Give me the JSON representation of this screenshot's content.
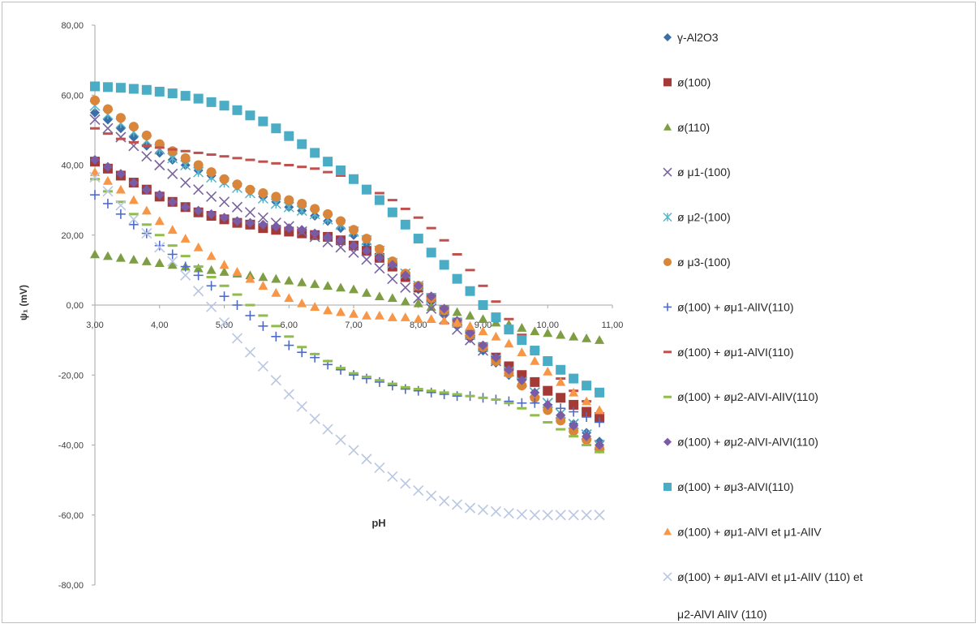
{
  "chart_data": {
    "type": "scatter",
    "title": "",
    "xlabel": "pH",
    "ylabel": "ψ₁ (mV)",
    "xlim": [
      3.0,
      11.0
    ],
    "ylim": [
      -80.0,
      80.0
    ],
    "x_ticks": [
      "3,00",
      "4,00",
      "5,00",
      "6,00",
      "7,00",
      "8,00",
      "9,00",
      "10,00",
      "11,00"
    ],
    "y_ticks": [
      "80,00",
      "60,00",
      "40,00",
      "20,00",
      "0,00",
      "-20,00",
      "-40,00",
      "-60,00",
      "-80,00"
    ],
    "grid": false,
    "legend_position": "right",
    "series": [
      {
        "name": "γ-Al2O3",
        "marker": "diamond",
        "color": "#3c6ea8",
        "x": [
          3.0,
          3.2,
          3.4,
          3.6,
          3.8,
          4.0,
          4.2,
          4.4,
          4.6,
          4.8,
          5.0,
          5.2,
          5.4,
          5.6,
          5.8,
          6.0,
          6.2,
          6.4,
          6.6,
          6.8,
          7.0,
          7.2,
          7.4,
          7.6,
          7.8,
          8.0,
          8.2,
          8.4,
          8.6,
          8.8,
          9.0,
          9.2,
          9.4,
          9.6,
          9.8,
          10.0,
          10.2,
          10.4,
          10.6,
          10.8
        ],
        "y": [
          55.0,
          53.0,
          50.5,
          48.0,
          45.5,
          43.5,
          41.5,
          40.0,
          38.5,
          37.0,
          35.5,
          34.0,
          32.5,
          31.0,
          29.5,
          28.0,
          27.0,
          25.5,
          24.0,
          22.0,
          20.0,
          17.5,
          14.5,
          11.5,
          8.0,
          4.5,
          1.0,
          -2.5,
          -6.0,
          -9.5,
          -13.0,
          -16.5,
          -20.0,
          -23.0,
          -26.0,
          -29.0,
          -31.5,
          -34.0,
          -36.5,
          -39.0
        ]
      },
      {
        "name": "ø(100)",
        "marker": "square",
        "color": "#a33a36",
        "x": [
          3.0,
          3.2,
          3.4,
          3.6,
          3.8,
          4.0,
          4.2,
          4.4,
          4.6,
          4.8,
          5.0,
          5.2,
          5.4,
          5.6,
          5.8,
          6.0,
          6.2,
          6.4,
          6.6,
          6.8,
          7.0,
          7.2,
          7.4,
          7.6,
          7.8,
          8.0,
          8.2,
          8.4,
          8.6,
          8.8,
          9.0,
          9.2,
          9.4,
          9.6,
          9.8,
          10.0,
          10.2,
          10.4,
          10.6,
          10.8
        ],
        "y": [
          41.0,
          39.0,
          37.0,
          35.0,
          33.0,
          31.0,
          29.5,
          28.0,
          26.5,
          25.5,
          24.5,
          23.5,
          23.0,
          22.0,
          21.5,
          21.0,
          20.5,
          20.0,
          19.5,
          18.5,
          17.0,
          15.5,
          13.5,
          11.0,
          8.0,
          5.0,
          2.0,
          -1.5,
          -5.0,
          -8.5,
          -12.0,
          -15.0,
          -17.5,
          -20.0,
          -22.0,
          -24.5,
          -26.5,
          -28.5,
          -30.5,
          -32.0
        ]
      },
      {
        "name": "ø(110)",
        "marker": "triangle",
        "color": "#7e9e45",
        "x": [
          3.0,
          3.2,
          3.4,
          3.6,
          3.8,
          4.0,
          4.2,
          4.4,
          4.6,
          4.8,
          5.0,
          5.2,
          5.4,
          5.6,
          5.8,
          6.0,
          6.2,
          6.4,
          6.6,
          6.8,
          7.0,
          7.2,
          7.4,
          7.6,
          7.8,
          8.0,
          8.2,
          8.4,
          8.6,
          8.8,
          9.0,
          9.2,
          9.4,
          9.6,
          9.8,
          10.0,
          10.2,
          10.4,
          10.6,
          10.8
        ],
        "y": [
          14.5,
          14.0,
          13.5,
          13.0,
          12.5,
          12.0,
          11.5,
          11.0,
          10.5,
          10.0,
          9.5,
          9.0,
          8.5,
          8.0,
          7.5,
          7.0,
          6.5,
          6.0,
          5.5,
          5.0,
          4.5,
          3.5,
          2.5,
          2.0,
          1.0,
          0.5,
          -0.5,
          -1.0,
          -2.0,
          -3.0,
          -4.0,
          -5.0,
          -5.5,
          -6.5,
          -7.5,
          -8.0,
          -8.5,
          -9.0,
          -9.5,
          -10.0
        ]
      },
      {
        "name": "ø μ1-(100)",
        "marker": "x",
        "color": "#7a64a0",
        "x": [
          3.0,
          3.2,
          3.4,
          3.6,
          3.8,
          4.0,
          4.2,
          4.4,
          4.6,
          4.8,
          5.0,
          5.2,
          5.4,
          5.6,
          5.8,
          6.0,
          6.2,
          6.4,
          6.6,
          6.8,
          7.0,
          7.2,
          7.4,
          7.6,
          7.8,
          8.0,
          8.2,
          8.4,
          8.6,
          8.8,
          9.0,
          9.2,
          9.4,
          9.6,
          9.8,
          10.0,
          10.2,
          10.4,
          10.6,
          10.8
        ],
        "y": [
          53.0,
          50.5,
          48.0,
          45.5,
          42.5,
          40.0,
          37.5,
          35.0,
          33.0,
          31.0,
          29.5,
          28.0,
          26.5,
          25.0,
          23.5,
          22.5,
          21.0,
          19.5,
          18.0,
          16.5,
          15.0,
          13.0,
          10.5,
          7.5,
          5.0,
          2.0,
          -1.0,
          -4.0,
          -7.0,
          -10.0,
          -13.0,
          -16.0,
          -19.0,
          -22.0,
          -25.0,
          -28.0,
          -31.0,
          -34.0,
          -37.0,
          -40.0
        ]
      },
      {
        "name": "ø μ2-(100)",
        "marker": "star",
        "color": "#58b4c8",
        "x": [
          3.0,
          3.2,
          3.4,
          3.6,
          3.8,
          4.0,
          4.2,
          4.4,
          4.6,
          4.8,
          5.0,
          5.2,
          5.4,
          5.6,
          5.8,
          6.0,
          6.2,
          6.4,
          6.6,
          6.8,
          7.0,
          7.2,
          7.4,
          7.6,
          7.8,
          8.0,
          8.2,
          8.4,
          8.6,
          8.8,
          9.0,
          9.2,
          9.4,
          9.6,
          9.8,
          10.0,
          10.2,
          10.4,
          10.6,
          10.8
        ],
        "y": [
          57.0,
          54.5,
          52.0,
          49.5,
          47.0,
          44.5,
          42.0,
          40.0,
          38.0,
          36.5,
          35.0,
          33.5,
          32.0,
          30.5,
          29.0,
          28.0,
          27.0,
          26.0,
          24.5,
          23.0,
          21.0,
          18.5,
          15.5,
          12.0,
          9.0,
          5.5,
          2.0,
          -1.5,
          -5.0,
          -8.5,
          -12.0,
          -15.5,
          -19.0,
          -22.0,
          -25.0,
          -28.0,
          -31.0,
          -34.0,
          -37.0,
          -40.0
        ]
      },
      {
        "name": "ø μ3-(100)",
        "marker": "circle",
        "color": "#d9853a",
        "x": [
          3.0,
          3.2,
          3.4,
          3.6,
          3.8,
          4.0,
          4.2,
          4.4,
          4.6,
          4.8,
          5.0,
          5.2,
          5.4,
          5.6,
          5.8,
          6.0,
          6.2,
          6.4,
          6.6,
          6.8,
          7.0,
          7.2,
          7.4,
          7.6,
          7.8,
          8.0,
          8.2,
          8.4,
          8.6,
          8.8,
          9.0,
          9.2,
          9.4,
          9.6,
          9.8,
          10.0,
          10.2,
          10.4,
          10.6,
          10.8
        ],
        "y": [
          58.5,
          56.0,
          53.5,
          51.0,
          48.5,
          46.0,
          44.0,
          42.0,
          40.0,
          38.0,
          36.0,
          34.5,
          33.0,
          32.0,
          31.0,
          30.0,
          29.0,
          27.5,
          26.0,
          24.0,
          21.5,
          19.0,
          16.0,
          12.5,
          9.0,
          5.5,
          2.0,
          -1.5,
          -5.0,
          -8.5,
          -12.0,
          -16.0,
          -19.5,
          -23.0,
          -26.5,
          -30.0,
          -33.0,
          -36.0,
          -38.5,
          -41.0
        ]
      },
      {
        "name": "ø(100) + øμ1-AlIV(110)",
        "marker": "plus",
        "color": "#4f6bc9",
        "x": [
          3.0,
          3.2,
          3.4,
          3.6,
          3.8,
          4.0,
          4.2,
          4.4,
          4.6,
          4.8,
          5.0,
          5.2,
          5.4,
          5.6,
          5.8,
          6.0,
          6.2,
          6.4,
          6.6,
          6.8,
          7.0,
          7.2,
          7.4,
          7.6,
          7.8,
          8.0,
          8.2,
          8.4,
          8.6,
          8.8,
          9.0,
          9.2,
          9.4,
          9.6,
          9.8,
          10.0,
          10.2,
          10.4,
          10.6,
          10.8
        ],
        "y": [
          31.5,
          29.0,
          26.0,
          23.0,
          20.5,
          17.0,
          14.5,
          11.0,
          8.5,
          5.5,
          2.5,
          0.0,
          -3.0,
          -6.0,
          -9.0,
          -11.5,
          -13.5,
          -15.0,
          -17.0,
          -18.5,
          -20.0,
          -21.0,
          -22.0,
          -23.0,
          -24.0,
          -24.5,
          -25.0,
          -25.5,
          -26.0,
          -26.0,
          -26.5,
          -27.0,
          -27.5,
          -28.0,
          -28.0,
          -28.5,
          -29.5,
          -30.5,
          -32.0,
          -33.5
        ]
      },
      {
        "name": "ø(100) + øμ1-AlVI(110)",
        "marker": "dash",
        "color": "#c0504d",
        "x": [
          3.0,
          3.2,
          3.4,
          3.6,
          3.8,
          4.0,
          4.2,
          4.4,
          4.6,
          4.8,
          5.0,
          5.2,
          5.4,
          5.6,
          5.8,
          6.0,
          6.2,
          6.4,
          6.6,
          6.8,
          7.0,
          7.2,
          7.4,
          7.6,
          7.8,
          8.0,
          8.2,
          8.4,
          8.6,
          8.8,
          9.0,
          9.2,
          9.4,
          9.6,
          9.8,
          10.0,
          10.2,
          10.4,
          10.6,
          10.8
        ],
        "y": [
          50.5,
          49.0,
          47.5,
          46.5,
          45.5,
          45.0,
          44.5,
          44.0,
          43.5,
          43.0,
          42.5,
          42.0,
          41.5,
          41.0,
          40.5,
          40.0,
          39.5,
          39.0,
          38.0,
          37.0,
          35.5,
          34.0,
          32.0,
          30.0,
          27.5,
          25.0,
          22.0,
          18.5,
          14.5,
          10.0,
          5.5,
          1.0,
          -4.0,
          -8.5,
          -13.0,
          -17.0,
          -21.0,
          -24.5,
          -27.5,
          -31.0
        ]
      },
      {
        "name": "ø(100) + øμ2-AlVI-AlIV(110)",
        "marker": "dash",
        "color": "#8fbc4a",
        "x": [
          3.0,
          3.2,
          3.4,
          3.6,
          3.8,
          4.0,
          4.2,
          4.4,
          4.6,
          4.8,
          5.0,
          5.2,
          5.4,
          5.6,
          5.8,
          6.0,
          6.2,
          6.4,
          6.6,
          6.8,
          7.0,
          7.2,
          7.4,
          7.6,
          7.8,
          8.0,
          8.2,
          8.4,
          8.6,
          8.8,
          9.0,
          9.2,
          9.4,
          9.6,
          9.8,
          10.0,
          10.2,
          10.4,
          10.6,
          10.8
        ],
        "y": [
          36.0,
          32.5,
          29.5,
          26.0,
          23.0,
          20.0,
          17.0,
          14.0,
          11.0,
          8.0,
          5.5,
          3.0,
          0.0,
          -3.0,
          -6.0,
          -9.0,
          -12.0,
          -14.0,
          -16.0,
          -18.0,
          -19.5,
          -20.5,
          -21.5,
          -22.5,
          -23.5,
          -24.0,
          -24.5,
          -25.0,
          -25.5,
          -26.0,
          -26.5,
          -27.0,
          -28.0,
          -29.5,
          -31.5,
          -33.5,
          -35.5,
          -37.5,
          -40.0,
          -42.0
        ]
      },
      {
        "name": "ø(100) + øμ2-AlVI-AlVI(110)",
        "marker": "diamond",
        "color": "#7a5ba6",
        "x": [
          3.0,
          3.2,
          3.4,
          3.6,
          3.8,
          4.0,
          4.2,
          4.4,
          4.6,
          4.8,
          5.0,
          5.2,
          5.4,
          5.6,
          5.8,
          6.0,
          6.2,
          6.4,
          6.6,
          6.8,
          7.0,
          7.2,
          7.4,
          7.6,
          7.8,
          8.0,
          8.2,
          8.4,
          8.6,
          8.8,
          9.0,
          9.2,
          9.4,
          9.6,
          9.8,
          10.0,
          10.2,
          10.4,
          10.6,
          10.8
        ],
        "y": [
          41.5,
          39.5,
          37.5,
          35.0,
          33.0,
          31.5,
          29.5,
          28.0,
          27.0,
          26.0,
          25.0,
          24.0,
          23.5,
          23.0,
          22.5,
          22.0,
          21.5,
          20.5,
          19.5,
          18.5,
          17.0,
          15.5,
          13.5,
          11.5,
          8.5,
          5.5,
          2.5,
          -1.0,
          -4.5,
          -8.0,
          -11.5,
          -15.0,
          -18.5,
          -21.5,
          -25.0,
          -28.5,
          -31.5,
          -34.5,
          -37.5,
          -40.0
        ]
      },
      {
        "name": "ø(100) + øμ3-AlVI(110)",
        "marker": "square",
        "color": "#4bacc6",
        "x": [
          3.0,
          3.2,
          3.4,
          3.6,
          3.8,
          4.0,
          4.2,
          4.4,
          4.6,
          4.8,
          5.0,
          5.2,
          5.4,
          5.6,
          5.8,
          6.0,
          6.2,
          6.4,
          6.6,
          6.8,
          7.0,
          7.2,
          7.4,
          7.6,
          7.8,
          8.0,
          8.2,
          8.4,
          8.6,
          8.8,
          9.0,
          9.2,
          9.4,
          9.6,
          9.8,
          10.0,
          10.2,
          10.4,
          10.6,
          10.8
        ],
        "y": [
          62.5,
          62.3,
          62.1,
          61.8,
          61.5,
          61.0,
          60.5,
          59.8,
          59.0,
          58.0,
          57.0,
          55.7,
          54.2,
          52.5,
          50.5,
          48.3,
          46.0,
          43.5,
          41.0,
          38.5,
          36.0,
          33.0,
          30.0,
          26.5,
          23.0,
          19.0,
          15.0,
          11.5,
          7.5,
          4.0,
          0.0,
          -3.5,
          -7.0,
          -10.0,
          -13.0,
          -16.0,
          -18.5,
          -21.0,
          -23.0,
          -25.0
        ]
      },
      {
        "name": "ø(100) + øμ1-AlVI et μ1-AlIV",
        "marker": "triangle",
        "color": "#f79646",
        "x": [
          3.0,
          3.2,
          3.4,
          3.6,
          3.8,
          4.0,
          4.2,
          4.4,
          4.6,
          4.8,
          5.0,
          5.2,
          5.4,
          5.6,
          5.8,
          6.0,
          6.2,
          6.4,
          6.6,
          6.8,
          7.0,
          7.2,
          7.4,
          7.6,
          7.8,
          8.0,
          8.2,
          8.4,
          8.6,
          8.8,
          9.0,
          9.2,
          9.4,
          9.6,
          9.8,
          10.0,
          10.2,
          10.4,
          10.6,
          10.8
        ],
        "y": [
          38.0,
          35.5,
          33.0,
          30.0,
          27.0,
          24.0,
          21.5,
          19.0,
          16.5,
          14.0,
          11.5,
          9.5,
          7.5,
          5.5,
          3.5,
          2.0,
          0.5,
          -0.5,
          -1.5,
          -2.0,
          -2.5,
          -3.0,
          -3.0,
          -3.5,
          -3.5,
          -4.0,
          -4.0,
          -4.5,
          -5.0,
          -6.0,
          -7.5,
          -9.0,
          -11.0,
          -13.5,
          -16.0,
          -19.0,
          -22.0,
          -25.0,
          -27.5,
          -30.0
        ]
      },
      {
        "name": "ø(100) + øμ1-AlVI et μ1-AlIV (110)  et μ2-AlVI AlIV (110)",
        "marker": "x",
        "color": "#b9c7e2",
        "x": [
          3.0,
          3.2,
          3.4,
          3.6,
          3.8,
          4.0,
          4.2,
          4.4,
          4.6,
          4.8,
          5.0,
          5.2,
          5.4,
          5.6,
          5.8,
          6.0,
          6.2,
          6.4,
          6.6,
          6.8,
          7.0,
          7.2,
          7.4,
          7.6,
          7.8,
          8.0,
          8.2,
          8.4,
          8.6,
          8.8,
          9.0,
          9.2,
          9.4,
          9.6,
          9.8,
          10.0,
          10.2,
          10.4,
          10.6,
          10.8
        ],
        "y": [
          36.5,
          32.5,
          28.5,
          24.5,
          20.5,
          16.5,
          12.5,
          8.5,
          4.0,
          -0.5,
          -5.0,
          -9.5,
          -13.5,
          -17.5,
          -21.5,
          -25.5,
          -29.0,
          -32.5,
          -35.5,
          -38.5,
          -41.5,
          -44.0,
          -46.5,
          -49.0,
          -51.0,
          -53.0,
          -54.5,
          -56.0,
          -57.0,
          -58.0,
          -58.5,
          -59.0,
          -59.5,
          -59.8,
          -60.0,
          -60.0,
          -60.0,
          -60.0,
          -60.0,
          -60.0
        ]
      }
    ]
  }
}
